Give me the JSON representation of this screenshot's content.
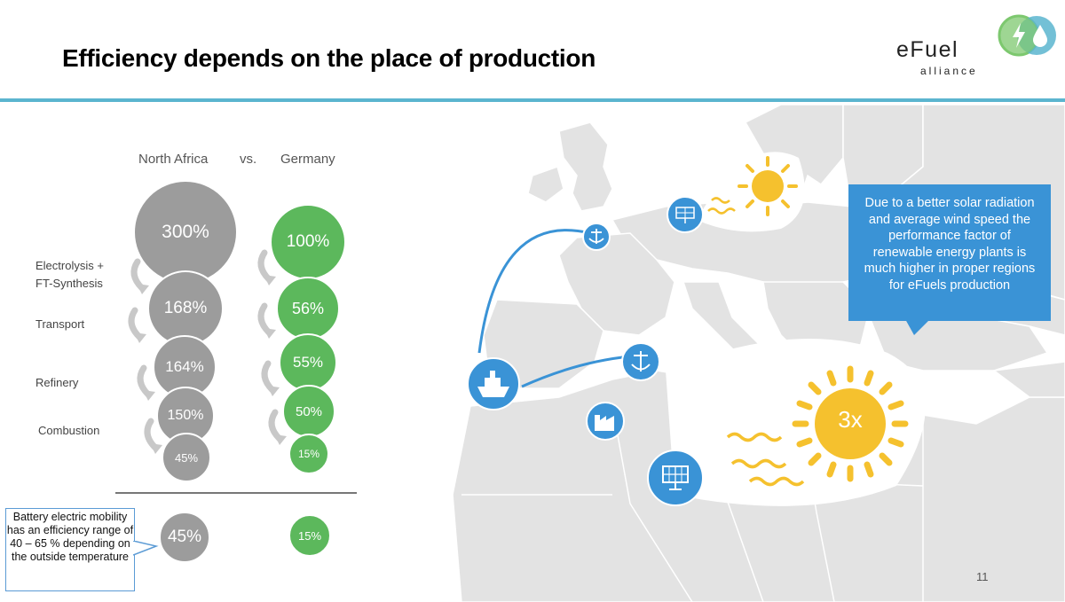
{
  "title": "Efficiency depends on the place of production",
  "logo": {
    "word": "eFuel",
    "sub": "alliance"
  },
  "columns": {
    "left": "North Africa",
    "vs": "vs.",
    "right": "Germany"
  },
  "row_labels": [
    "Electrolysis +",
    "FT-Synthesis",
    "Transport",
    "Refinery",
    "Combustion"
  ],
  "north_africa": [
    "300%",
    "168%",
    "164%",
    "150%",
    "45%"
  ],
  "germany": [
    "100%",
    "56%",
    "55%",
    "50%",
    "15%"
  ],
  "bottom": {
    "north_africa": "45%",
    "germany": "15%"
  },
  "battery_note": "Battery electric mobility has an efficiency range of 40 – 65 % depending on the outside temperature",
  "info_box": "Due to a better solar radiation and average wind speed the performance factor of renewable energy plants is much higher in proper regions for eFuels production",
  "sun_label": "3x",
  "page_number": "11",
  "colors": {
    "accent": "#5bb5cf",
    "grey": "#9c9c9c",
    "green": "#5cb85c",
    "blue": "#3a93d6",
    "sun": "#f5c12e",
    "land": "#e3e3e3"
  },
  "icons": [
    "solar-panel-icon",
    "anchor-icon",
    "ship-icon",
    "factory-icon",
    "sun-icon",
    "lightning-icon",
    "water-drop-icon"
  ]
}
